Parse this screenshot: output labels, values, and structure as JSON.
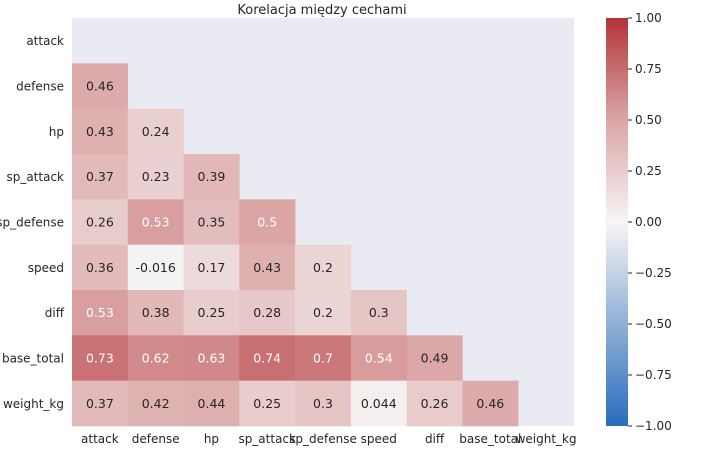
{
  "chart_data": {
    "type": "heatmap",
    "title": "Korelacja między cechami",
    "xlabel": "",
    "ylabel": "",
    "rows": [
      "attack",
      "defense",
      "hp",
      "sp_attack",
      "sp_defense",
      "speed",
      "diff",
      "base_total",
      "weight_kg"
    ],
    "cols": [
      "attack",
      "defense",
      "hp",
      "sp_attack",
      "sp_defense",
      "speed",
      "diff",
      "base_total",
      "weight_kg"
    ],
    "mask": "upper-triangle-including-diagonal",
    "values": [
      [
        null,
        null,
        null,
        null,
        null,
        null,
        null,
        null,
        null
      ],
      [
        0.46,
        null,
        null,
        null,
        null,
        null,
        null,
        null,
        null
      ],
      [
        0.43,
        0.24,
        null,
        null,
        null,
        null,
        null,
        null,
        null
      ],
      [
        0.37,
        0.23,
        0.39,
        null,
        null,
        null,
        null,
        null,
        null
      ],
      [
        0.26,
        0.53,
        0.35,
        0.5,
        null,
        null,
        null,
        null,
        null
      ],
      [
        0.36,
        -0.016,
        0.17,
        0.43,
        0.2,
        null,
        null,
        null,
        null
      ],
      [
        0.53,
        0.38,
        0.25,
        0.28,
        0.2,
        0.3,
        null,
        null,
        null
      ],
      [
        0.73,
        0.62,
        0.63,
        0.74,
        0.7,
        0.54,
        0.49,
        null,
        null
      ],
      [
        0.37,
        0.42,
        0.44,
        0.25,
        0.3,
        0.044,
        0.26,
        0.46,
        null
      ]
    ],
    "labels": [
      [
        null,
        null,
        null,
        null,
        null,
        null,
        null,
        null,
        null
      ],
      [
        "0.46",
        null,
        null,
        null,
        null,
        null,
        null,
        null,
        null
      ],
      [
        "0.43",
        "0.24",
        null,
        null,
        null,
        null,
        null,
        null,
        null
      ],
      [
        "0.37",
        "0.23",
        "0.39",
        null,
        null,
        null,
        null,
        null,
        null
      ],
      [
        "0.26",
        "0.53",
        "0.35",
        "0.5",
        null,
        null,
        null,
        null,
        null
      ],
      [
        "0.36",
        "-0.016",
        "0.17",
        "0.43",
        "0.2",
        null,
        null,
        null,
        null
      ],
      [
        "0.53",
        "0.38",
        "0.25",
        "0.28",
        "0.2",
        "0.3",
        null,
        null,
        null
      ],
      [
        "0.73",
        "0.62",
        "0.63",
        "0.74",
        "0.7",
        "0.54",
        "0.49",
        null,
        null
      ],
      [
        "0.37",
        "0.42",
        "0.44",
        "0.25",
        "0.3",
        "0.044",
        "0.26",
        "0.46",
        null
      ]
    ],
    "colorbar": {
      "range": [
        -1.0,
        1.0
      ],
      "ticks": [
        1.0,
        0.75,
        0.5,
        0.25,
        0.0,
        -0.25,
        -0.5,
        -0.75,
        -1.0
      ],
      "tick_labels": [
        "1.00",
        "0.75",
        "0.50",
        "0.25",
        "0.00",
        "−0.25",
        "−0.50",
        "−0.75",
        "−1.00"
      ],
      "colormap": "blue-white-red diverging",
      "colors": {
        "low": "#2a6bbf",
        "mid": "#f7f5f5",
        "high": "#b3343a"
      }
    },
    "grid": false,
    "background": "#eaeaf2"
  }
}
